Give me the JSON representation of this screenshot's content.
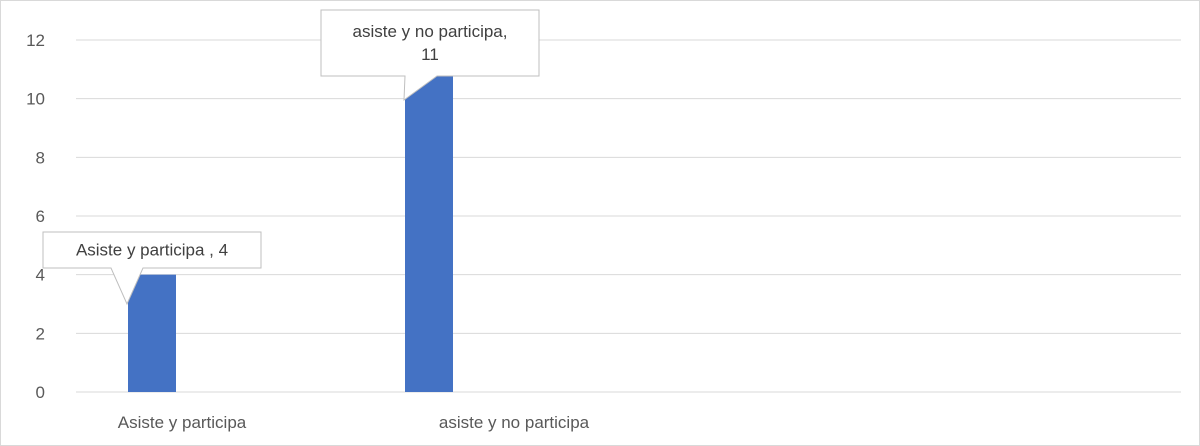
{
  "chart_data": {
    "type": "bar",
    "categories": [
      "Asiste y participa",
      "asiste y no participa"
    ],
    "values": [
      4,
      11
    ],
    "ylim": [
      0,
      12
    ],
    "yticks": [
      0,
      2,
      4,
      6,
      8,
      10,
      12
    ],
    "grid": true,
    "bar_color": "#4472C4",
    "gridline_color": "#d9d9d9",
    "data_labels": [
      {
        "lines": [
          "Asiste y participa , 4"
        ]
      },
      {
        "lines": [
          "asiste y no participa,",
          "11"
        ]
      }
    ]
  }
}
